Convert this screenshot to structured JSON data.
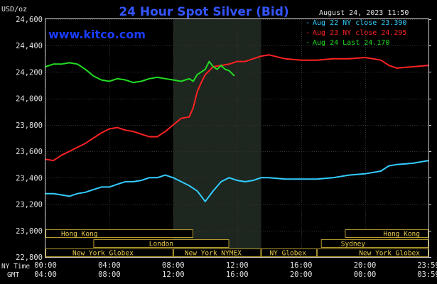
{
  "chart_data": {
    "type": "line",
    "title": "24 Hour Spot Silver (Bid)",
    "unit_label": "USD/oz",
    "timestamp": "August 24, 2023 11:50",
    "watermark": "www.kitco.com",
    "ylim": [
      22.8,
      24.6
    ],
    "y_ticks": [
      "24,600",
      "24,400",
      "24,200",
      "24,000",
      "23,800",
      "23,600",
      "23,400",
      "23,200",
      "23,000",
      "22,800"
    ],
    "x_axis": {
      "row1_label": "NY Time",
      "row2_label": "GMT",
      "ny_ticks": [
        "00:00",
        "04:00",
        "08:00",
        "12:00",
        "16:00",
        "20:00",
        "23:59"
      ],
      "gmt_ticks": [
        "04:00",
        "08:00",
        "12:00",
        "16:00",
        "20:00",
        "00:00",
        "03:59"
      ]
    },
    "legend": {
      "placement": "top-right",
      "entries": [
        {
          "label": "Aug 22 NY close 23.390",
          "color": "#33ccff"
        },
        {
          "label": "Aug 23 NY close 24.295",
          "color": "#ff2222"
        },
        {
          "label": "Aug 24 Last 24.170",
          "color": "#22dd22"
        }
      ]
    },
    "market_bars": [
      {
        "label": "Hong Kong",
        "start": 0.0,
        "end": 9.25,
        "row": 0
      },
      {
        "label": "Hong Kong",
        "start": 18.75,
        "end": 23.98,
        "row": 0
      },
      {
        "label": "London",
        "start": 3.0,
        "end": 11.5,
        "row": 1
      },
      {
        "label": "Sydney",
        "start": 17.25,
        "end": 23.98,
        "row": 1
      },
      {
        "label": "New York Globex",
        "start": 0.0,
        "end": 8.0,
        "row": 2
      },
      {
        "label": "New York NYMEX",
        "start": 8.0,
        "end": 13.5,
        "row": 2
      },
      {
        "label": "NY Globex",
        "start": 13.5,
        "end": 17.0,
        "row": 2
      },
      {
        "label": "New York Globex",
        "start": 17.0,
        "end": 23.98,
        "row": 2
      }
    ],
    "highlight_band": {
      "start": 8.0,
      "end": 13.5
    },
    "series": [
      {
        "name": "Aug 22",
        "color": "#33ccff",
        "points": [
          [
            0,
            23.28
          ],
          [
            0.5,
            23.28
          ],
          [
            1,
            23.27
          ],
          [
            1.5,
            23.26
          ],
          [
            2,
            23.28
          ],
          [
            2.5,
            23.29
          ],
          [
            3,
            23.31
          ],
          [
            3.5,
            23.33
          ],
          [
            4,
            23.33
          ],
          [
            4.5,
            23.35
          ],
          [
            5,
            23.37
          ],
          [
            5.5,
            23.37
          ],
          [
            6,
            23.38
          ],
          [
            6.5,
            23.4
          ],
          [
            7,
            23.4
          ],
          [
            7.5,
            23.42
          ],
          [
            8,
            23.4
          ],
          [
            8.5,
            23.37
          ],
          [
            9,
            23.34
          ],
          [
            9.5,
            23.3
          ],
          [
            10,
            23.22
          ],
          [
            10.5,
            23.3
          ],
          [
            11,
            23.37
          ],
          [
            11.5,
            23.4
          ],
          [
            12,
            23.38
          ],
          [
            12.5,
            23.37
          ],
          [
            13,
            23.38
          ],
          [
            13.5,
            23.4
          ],
          [
            14,
            23.4
          ],
          [
            15,
            23.39
          ],
          [
            16,
            23.39
          ],
          [
            17,
            23.39
          ],
          [
            18,
            23.4
          ],
          [
            19,
            23.42
          ],
          [
            20,
            23.43
          ],
          [
            21,
            23.45
          ],
          [
            21.5,
            23.49
          ],
          [
            22,
            23.5
          ],
          [
            23,
            23.51
          ],
          [
            23.5,
            23.52
          ],
          [
            23.98,
            23.53
          ]
        ]
      },
      {
        "name": "Aug 23",
        "color": "#ff2222",
        "points": [
          [
            0,
            23.54
          ],
          [
            0.5,
            23.53
          ],
          [
            1,
            23.57
          ],
          [
            1.5,
            23.6
          ],
          [
            2,
            23.63
          ],
          [
            2.5,
            23.66
          ],
          [
            3,
            23.7
          ],
          [
            3.5,
            23.74
          ],
          [
            4,
            23.77
          ],
          [
            4.5,
            23.78
          ],
          [
            5,
            23.76
          ],
          [
            5.5,
            23.75
          ],
          [
            6,
            23.73
          ],
          [
            6.5,
            23.71
          ],
          [
            7,
            23.71
          ],
          [
            7.5,
            23.75
          ],
          [
            8,
            23.8
          ],
          [
            8.5,
            23.85
          ],
          [
            9,
            23.86
          ],
          [
            9.25,
            23.93
          ],
          [
            9.5,
            24.05
          ],
          [
            9.75,
            24.12
          ],
          [
            10,
            24.18
          ],
          [
            10.5,
            24.24
          ],
          [
            11,
            24.25
          ],
          [
            11.5,
            24.26
          ],
          [
            12,
            24.28
          ],
          [
            12.5,
            24.28
          ],
          [
            13,
            24.3
          ],
          [
            13.5,
            24.32
          ],
          [
            14,
            24.33
          ],
          [
            15,
            24.3
          ],
          [
            16,
            24.29
          ],
          [
            17,
            24.29
          ],
          [
            18,
            24.3
          ],
          [
            19,
            24.3
          ],
          [
            20,
            24.31
          ],
          [
            20.5,
            24.3
          ],
          [
            21,
            24.29
          ],
          [
            21.5,
            24.25
          ],
          [
            22,
            24.23
          ],
          [
            23,
            24.24
          ],
          [
            23.98,
            24.25
          ]
        ]
      },
      {
        "name": "Aug 24",
        "color": "#22dd22",
        "points": [
          [
            0,
            24.24
          ],
          [
            0.5,
            24.26
          ],
          [
            1,
            24.26
          ],
          [
            1.5,
            24.27
          ],
          [
            2,
            24.26
          ],
          [
            2.5,
            24.22
          ],
          [
            3,
            24.17
          ],
          [
            3.5,
            24.14
          ],
          [
            4,
            24.13
          ],
          [
            4.5,
            24.15
          ],
          [
            5,
            24.14
          ],
          [
            5.5,
            24.12
          ],
          [
            6,
            24.13
          ],
          [
            6.5,
            24.15
          ],
          [
            7,
            24.16
          ],
          [
            7.5,
            24.15
          ],
          [
            8,
            24.14
          ],
          [
            8.5,
            24.13
          ],
          [
            9,
            24.15
          ],
          [
            9.25,
            24.13
          ],
          [
            9.5,
            24.18
          ],
          [
            10,
            24.22
          ],
          [
            10.25,
            24.28
          ],
          [
            10.5,
            24.24
          ],
          [
            10.75,
            24.22
          ],
          [
            11,
            24.25
          ],
          [
            11.25,
            24.22
          ],
          [
            11.5,
            24.21
          ],
          [
            11.83,
            24.17
          ]
        ]
      }
    ]
  }
}
